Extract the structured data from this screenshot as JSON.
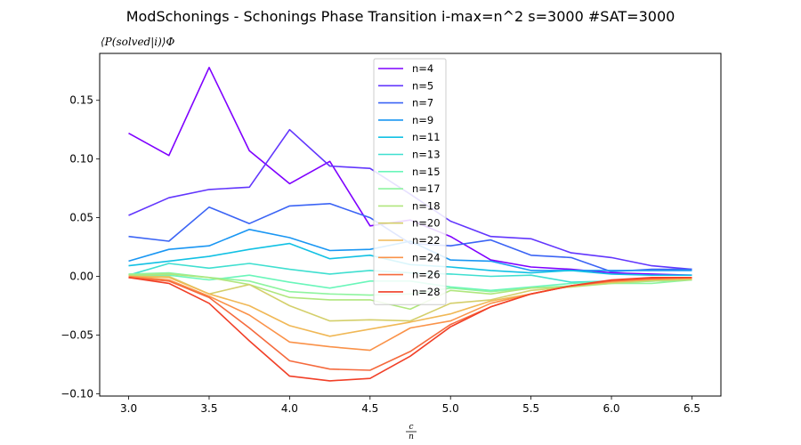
{
  "chart_data": {
    "type": "line",
    "title": "ModSchonings - Schonings Phase Transition  i-max=n^2 s=3000 #SAT=3000",
    "ylabel": "⟨P(solved|i)⟩Φ",
    "xlabel_numerator": "c",
    "xlabel_denominator": "n",
    "xlim": [
      2.82,
      6.68
    ],
    "ylim": [
      -0.102,
      0.19
    ],
    "xticks": [
      3.0,
      3.5,
      4.0,
      4.5,
      5.0,
      5.5,
      6.0,
      6.5
    ],
    "xtick_labels": [
      "3.0",
      "3.5",
      "4.0",
      "4.5",
      "5.0",
      "5.5",
      "6.0",
      "6.5"
    ],
    "yticks": [
      -0.1,
      -0.05,
      0.0,
      0.05,
      0.1,
      0.15
    ],
    "ytick_labels": [
      "−0.10",
      "−0.05",
      "0.00",
      "0.05",
      "0.10",
      "0.15"
    ],
    "grid": false,
    "legend_position": "top-center",
    "x": [
      3.0,
      3.25,
      3.5,
      3.75,
      4.0,
      4.25,
      4.5,
      4.75,
      5.0,
      5.25,
      5.5,
      5.75,
      6.0,
      6.25,
      6.5
    ],
    "series": [
      {
        "name": "n=4",
        "color": "#7f00ff",
        "values": [
          0.122,
          0.103,
          0.178,
          0.107,
          0.079,
          0.098,
          0.043,
          0.048,
          0.034,
          0.014,
          0.008,
          0.006,
          0.003,
          0.002,
          0.001
        ]
      },
      {
        "name": "n=5",
        "color": "#6236fd",
        "values": [
          0.052,
          0.067,
          0.074,
          0.076,
          0.125,
          0.094,
          0.092,
          0.07,
          0.047,
          0.034,
          0.032,
          0.02,
          0.016,
          0.009,
          0.006
        ]
      },
      {
        "name": "n=7",
        "color": "#3b64f5",
        "values": [
          0.034,
          0.03,
          0.059,
          0.045,
          0.06,
          0.062,
          0.05,
          0.028,
          0.026,
          0.031,
          0.018,
          0.016,
          0.004,
          0.006,
          0.006
        ]
      },
      {
        "name": "n=9",
        "color": "#1996f3",
        "values": [
          0.013,
          0.023,
          0.026,
          0.04,
          0.033,
          0.022,
          0.023,
          0.03,
          0.014,
          0.013,
          0.005,
          0.005,
          0.005,
          0.005,
          0.005
        ]
      },
      {
        "name": "n=11",
        "color": "#12c1e4",
        "values": [
          0.009,
          0.013,
          0.017,
          0.023,
          0.028,
          0.015,
          0.018,
          0.01,
          0.008,
          0.005,
          0.003,
          0.005,
          0.002,
          0.001,
          0.001
        ]
      },
      {
        "name": "n=13",
        "color": "#3fdfd0",
        "values": [
          0.001,
          0.011,
          0.007,
          0.011,
          0.006,
          0.002,
          0.005,
          0.003,
          0.002,
          0.0,
          0.001,
          -0.005,
          -0.004,
          -0.004,
          -0.003
        ]
      },
      {
        "name": "n=15",
        "color": "#6af6ba",
        "values": [
          0.0,
          0.001,
          -0.003,
          0.001,
          -0.005,
          -0.01,
          -0.004,
          -0.004,
          -0.009,
          -0.012,
          -0.009,
          -0.006,
          -0.004,
          -0.004,
          -0.003
        ]
      },
      {
        "name": "n=17",
        "color": "#8ef49f",
        "values": [
          0.002,
          0.003,
          -0.001,
          -0.004,
          -0.013,
          -0.015,
          -0.016,
          -0.015,
          -0.01,
          -0.013,
          -0.01,
          -0.008,
          -0.006,
          -0.006,
          -0.003
        ]
      },
      {
        "name": "n=18",
        "color": "#b0e67d",
        "values": [
          0.001,
          0.002,
          -0.001,
          -0.007,
          -0.018,
          -0.02,
          -0.02,
          -0.028,
          -0.012,
          -0.015,
          -0.01,
          -0.009,
          -0.006,
          -0.004,
          -0.003
        ]
      },
      {
        "name": "n=20",
        "color": "#d4cf6b",
        "values": [
          0.0,
          0.0,
          -0.015,
          -0.007,
          -0.025,
          -0.038,
          -0.037,
          -0.038,
          -0.023,
          -0.02,
          -0.012,
          -0.009,
          -0.004,
          -0.003,
          -0.002
        ]
      },
      {
        "name": "n=22",
        "color": "#f0b856",
        "values": [
          0.0,
          -0.001,
          -0.015,
          -0.025,
          -0.042,
          -0.051,
          -0.045,
          -0.039,
          -0.032,
          -0.021,
          -0.015,
          -0.008,
          -0.005,
          -0.003,
          -0.002
        ]
      },
      {
        "name": "n=24",
        "color": "#fa9249",
        "values": [
          0.0,
          -0.003,
          -0.017,
          -0.033,
          -0.056,
          -0.06,
          -0.063,
          -0.044,
          -0.038,
          -0.023,
          -0.015,
          -0.008,
          -0.004,
          -0.002,
          -0.001
        ]
      },
      {
        "name": "n=26",
        "color": "#f56a3d",
        "values": [
          -0.001,
          -0.004,
          -0.018,
          -0.044,
          -0.072,
          -0.079,
          -0.08,
          -0.064,
          -0.041,
          -0.026,
          -0.015,
          -0.008,
          -0.004,
          -0.002,
          -0.001
        ]
      },
      {
        "name": "n=28",
        "color": "#f13f27",
        "values": [
          -0.001,
          -0.006,
          -0.023,
          -0.055,
          -0.085,
          -0.089,
          -0.087,
          -0.068,
          -0.043,
          -0.026,
          -0.015,
          -0.008,
          -0.003,
          -0.001,
          -0.001
        ]
      }
    ]
  }
}
